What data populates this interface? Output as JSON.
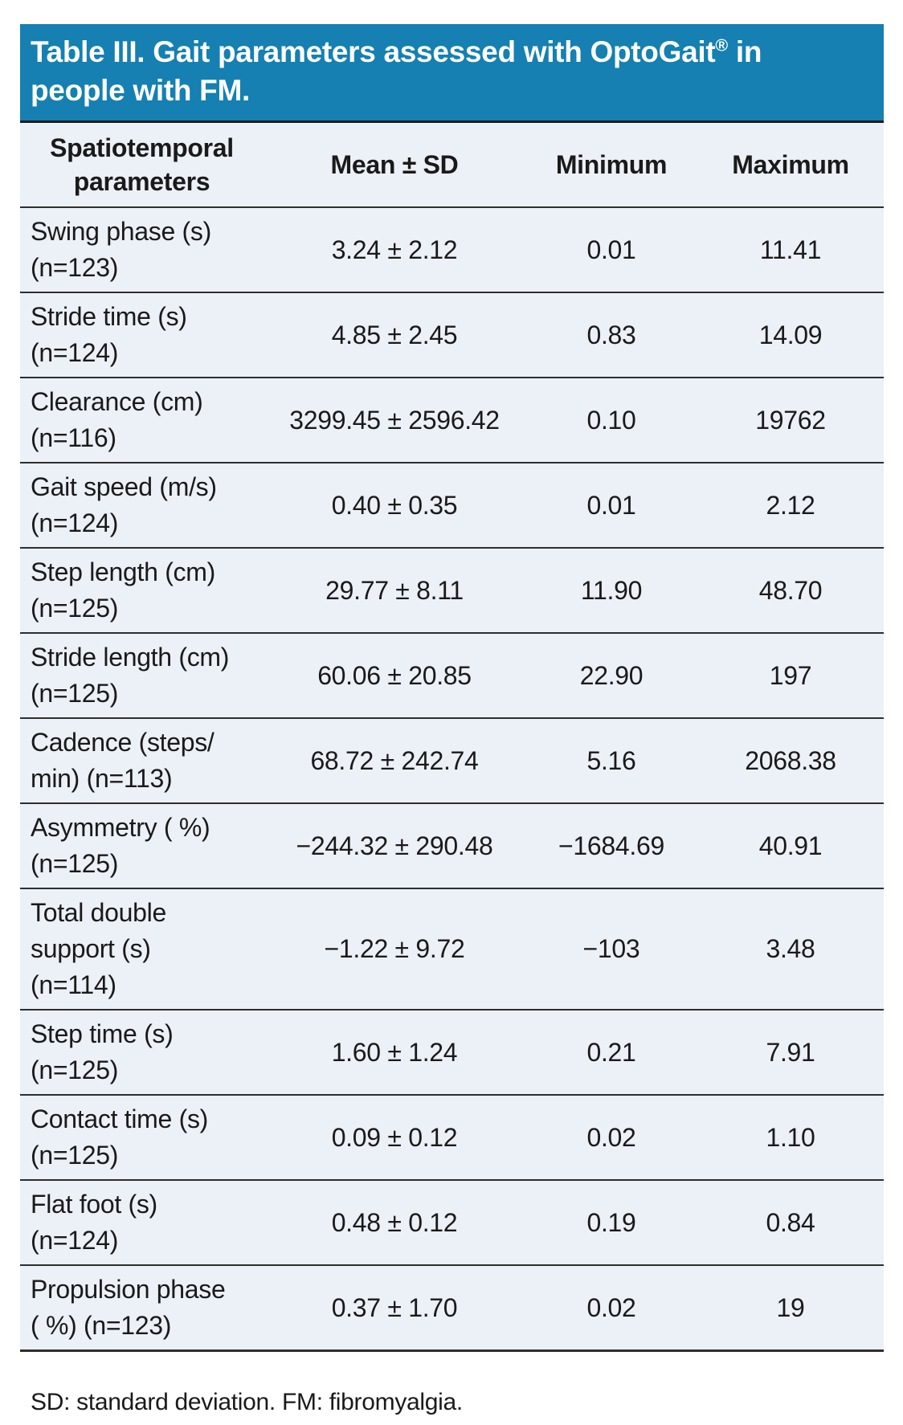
{
  "title": {
    "line1_text": "Table III. Gait parameters assessed with OptoGait",
    "trademark": "®",
    "line1_end": " in",
    "line2": "people with FM."
  },
  "colors": {
    "header_bg": "#1580B1",
    "row_bg": "#ECF0F7",
    "divider": "#2E2E2E",
    "title_text": "#FFFFFF",
    "body_text": "#1A1A1A"
  },
  "table": {
    "columns": [
      "Spatiotemporal parameters",
      "Mean ± SD",
      "Minimum",
      "Maximum"
    ],
    "rows": [
      {
        "parameter_lines": [
          "Swing phase (s)",
          "(n=123)"
        ],
        "mean_sd": "3.24 ± 2.12",
        "minimum": "0.01",
        "maximum": "11.41"
      },
      {
        "parameter_lines": [
          "Stride time (s)",
          "(n=124)"
        ],
        "mean_sd": "4.85 ± 2.45",
        "minimum": "0.83",
        "maximum": "14.09"
      },
      {
        "parameter_lines": [
          "Clearance (cm)",
          "(n=116)"
        ],
        "mean_sd": "3299.45 ± 2596.42",
        "minimum": "0.10",
        "maximum": "19762"
      },
      {
        "parameter_lines": [
          "Gait speed (m/s)",
          "(n=124)"
        ],
        "mean_sd": "0.40 ± 0.35",
        "minimum": "0.01",
        "maximum": "2.12"
      },
      {
        "parameter_lines": [
          "Step length (cm)",
          "(n=125)"
        ],
        "mean_sd": "29.77 ± 8.11",
        "minimum": "11.90",
        "maximum": "48.70"
      },
      {
        "parameter_lines": [
          "Stride length (cm)",
          "(n=125)"
        ],
        "mean_sd": "60.06 ± 20.85",
        "minimum": "22.90",
        "maximum": "197"
      },
      {
        "parameter_lines": [
          "Cadence (steps/",
          "min) (n=113)"
        ],
        "mean_sd": "68.72 ± 242.74",
        "minimum": "5.16",
        "maximum": "2068.38"
      },
      {
        "parameter_lines": [
          "Asymmetry ( %)",
          "(n=125)"
        ],
        "mean_sd": "−244.32 ± 290.48",
        "minimum": "−1684.69",
        "maximum": "40.91"
      },
      {
        "parameter_lines": [
          "Total double",
          "support (s)",
          "(n=114)"
        ],
        "mean_sd": "−1.22 ± 9.72",
        "minimum": "−103",
        "maximum": "3.48"
      },
      {
        "parameter_lines": [
          "Step time (s)",
          "(n=125)"
        ],
        "mean_sd": "1.60 ± 1.24",
        "minimum": "0.21",
        "maximum": "7.91"
      },
      {
        "parameter_lines": [
          "Contact time (s)",
          "(n=125)"
        ],
        "mean_sd": "0.09 ± 0.12",
        "minimum": "0.02",
        "maximum": "1.10"
      },
      {
        "parameter_lines": [
          "Flat foot (s)",
          "(n=124)"
        ],
        "mean_sd": "0.48 ± 0.12",
        "minimum": "0.19",
        "maximum": "0.84"
      },
      {
        "parameter_lines": [
          "Propulsion phase",
          "( %) (n=123)"
        ],
        "mean_sd": "0.37 ± 1.70",
        "minimum": "0.02",
        "maximum": "19"
      }
    ]
  },
  "footnote": "SD: standard deviation. FM: fibromyalgia."
}
